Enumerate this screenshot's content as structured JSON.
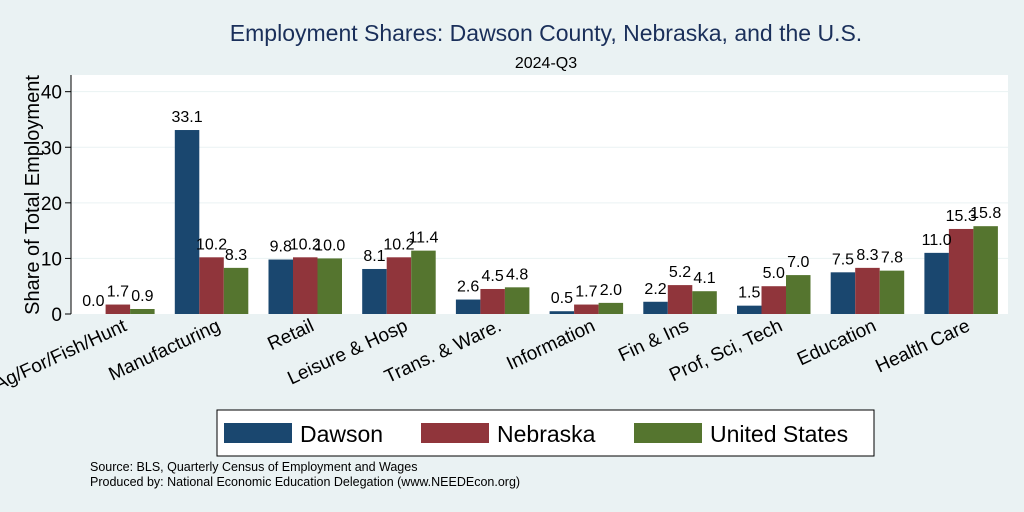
{
  "chart_data": {
    "type": "bar",
    "title": "Employment Shares: Dawson County, Nebraska, and the U.S.",
    "subtitle": "2024-Q3",
    "xlabel": "",
    "ylabel": "Share of Total Employment",
    "ylim": [
      0,
      43
    ],
    "yticks": [
      0,
      10,
      20,
      30,
      40
    ],
    "grid": true,
    "legend_position": "bottom",
    "categories": [
      "Ag/For/Fish/Hunt",
      "Manufacturing",
      "Retail",
      "Leisure & Hosp",
      "Trans. & Ware.",
      "Information",
      "Fin & Ins",
      "Prof, Sci, Tech",
      "Education",
      "Health Care"
    ],
    "series": [
      {
        "name": "Dawson",
        "color": "#1a476f",
        "values": [
          0.0,
          33.1,
          9.8,
          8.1,
          2.6,
          0.5,
          2.2,
          1.5,
          7.5,
          11.0
        ]
      },
      {
        "name": "Nebraska",
        "color": "#90353b",
        "values": [
          1.7,
          10.2,
          10.2,
          10.2,
          4.5,
          1.7,
          5.2,
          5.0,
          8.3,
          15.3
        ]
      },
      {
        "name": "United States",
        "color": "#55752f",
        "values": [
          0.9,
          8.3,
          10.0,
          11.4,
          4.8,
          2.0,
          4.1,
          7.0,
          7.8,
          15.8
        ]
      }
    ],
    "source_lines": [
      "Source: BLS, Quarterly Census of Employment and Wages",
      "Produced by: National Economic Education Delegation (www.NEEDEcon.org)"
    ]
  }
}
